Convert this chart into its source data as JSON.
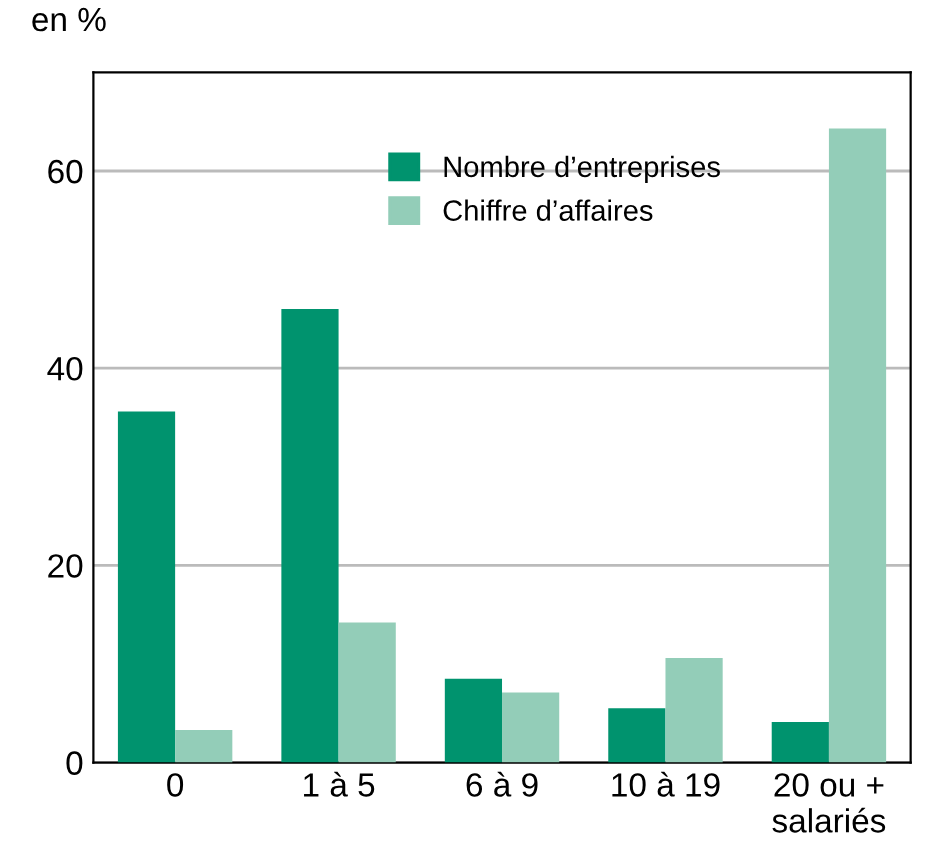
{
  "chart_data": {
    "type": "bar",
    "ylabel": "en %",
    "categories": [
      "0",
      "1 à 5",
      "6 à 9",
      "10 à 19",
      "20 ou +\nsalariés"
    ],
    "series": [
      {
        "name": "Nombre d’entreprises",
        "color": "#00936e",
        "values": [
          35.6,
          46.0,
          8.5,
          5.5,
          4.1
        ]
      },
      {
        "name": "Chiffre d’affaires",
        "color": "#93cdb8",
        "values": [
          3.3,
          14.2,
          7.1,
          10.6,
          64.3
        ]
      }
    ],
    "ylim": [
      0,
      70
    ],
    "yticks": [
      0,
      20,
      40,
      60
    ],
    "grid": "y",
    "legend": "top right"
  }
}
